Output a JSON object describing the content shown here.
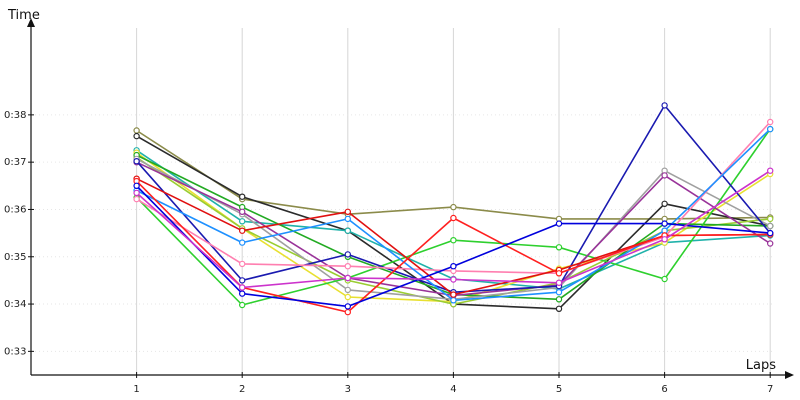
{
  "chart_data": {
    "type": "line",
    "xlabel": "Laps",
    "ylabel": "Time",
    "x": [
      1,
      2,
      3,
      4,
      5,
      6,
      7
    ],
    "xlim": [
      0,
      7.2
    ],
    "ylim": [
      0.325,
      0.399
    ],
    "y_ticks": [
      {
        "value": 0.33,
        "label": "0:33"
      },
      {
        "value": 0.34,
        "label": "0:34"
      },
      {
        "value": 0.35,
        "label": "0:35"
      },
      {
        "value": 0.36,
        "label": "0:36"
      },
      {
        "value": 0.37,
        "label": "0:37"
      },
      {
        "value": 0.38,
        "label": "0:38"
      }
    ],
    "x_tick_labels": [
      "1",
      "2",
      "3",
      "4",
      "5",
      "6",
      "7"
    ],
    "grid": "vertical",
    "legend": "none",
    "series": [
      {
        "color": "#8b8b4a",
        "values": [
          0.3767,
          0.3622,
          0.359,
          0.3605,
          0.358,
          0.358,
          0.3583
        ]
      },
      {
        "color": "#2b2b2b",
        "values": [
          0.3755,
          0.3627,
          0.3555,
          0.34,
          0.339,
          0.3612,
          0.3565
        ]
      },
      {
        "color": "#20b2aa",
        "values": [
          0.3725,
          0.3575,
          0.3555,
          0.3453,
          0.3432,
          0.353,
          0.3545
        ]
      },
      {
        "color": "#e8e030",
        "values": [
          0.372,
          0.356,
          0.3415,
          0.3405,
          0.3475,
          0.353,
          0.3675
        ]
      },
      {
        "color": "#9acd32",
        "values": [
          0.371,
          0.356,
          0.345,
          0.34,
          0.3445,
          0.3555,
          0.358
        ]
      },
      {
        "color": "#22aa22",
        "values": [
          0.3715,
          0.3605,
          0.35,
          0.342,
          0.341,
          0.357,
          0.3565
        ]
      },
      {
        "color": "#a0a0a0",
        "values": [
          0.3707,
          0.359,
          0.343,
          0.341,
          0.3435,
          0.3682,
          0.3565
        ]
      },
      {
        "color": "#2ed02e",
        "values": [
          0.3625,
          0.3398,
          0.3455,
          0.3535,
          0.352,
          0.3453,
          0.377
        ]
      },
      {
        "color": "#993399",
        "values": [
          0.37,
          0.3595,
          0.3455,
          0.3418,
          0.344,
          0.3672,
          0.3528
        ]
      },
      {
        "color": "#1a1ab0",
        "values": [
          0.3702,
          0.345,
          0.3505,
          0.3425,
          0.3438,
          0.382,
          0.355
        ]
      },
      {
        "color": "#ff7fb0",
        "values": [
          0.3622,
          0.3485,
          0.348,
          0.347,
          0.3465,
          0.3542,
          0.3785
        ]
      },
      {
        "color": "#1e90ff",
        "values": [
          0.364,
          0.353,
          0.358,
          0.3408,
          0.3425,
          0.3555,
          0.377
        ]
      },
      {
        "color": "#e01010",
        "values": [
          0.3665,
          0.3555,
          0.3595,
          0.342,
          0.3472,
          0.3545,
          0.3547
        ]
      },
      {
        "color": "#ff2020",
        "values": [
          0.366,
          0.3435,
          0.3383,
          0.3582,
          0.3465,
          0.3545,
          0.3547
        ]
      },
      {
        "color": "#0000dd",
        "values": [
          0.365,
          0.3422,
          0.3395,
          0.348,
          0.357,
          0.357,
          0.355
        ]
      },
      {
        "color": "#cc33cc",
        "values": [
          0.3635,
          0.3435,
          0.3455,
          0.3452,
          0.3445,
          0.3537,
          0.3682
        ]
      }
    ]
  }
}
